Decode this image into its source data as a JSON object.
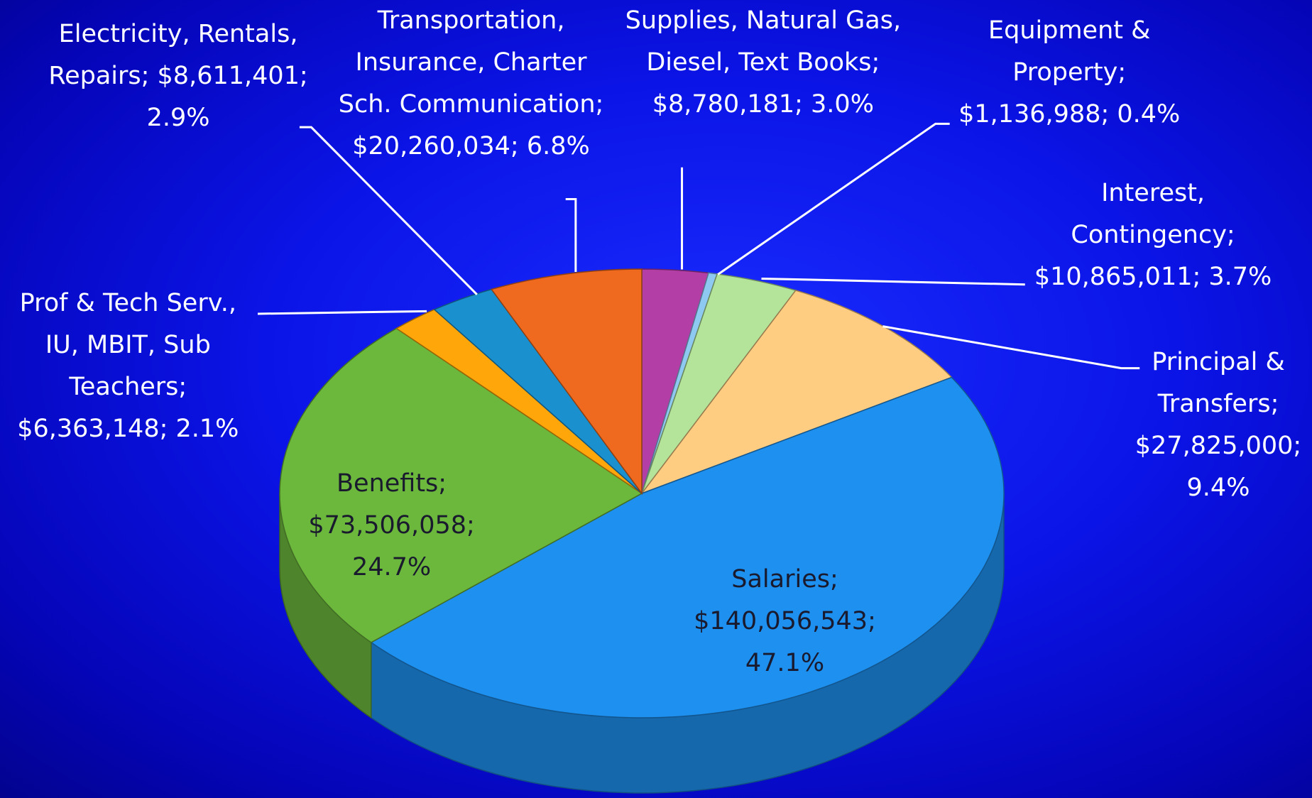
{
  "chart_data": {
    "type": "pie3d",
    "values": [
      8780181,
      1136988,
      10865011,
      27825000,
      140056543,
      73506058,
      6363148,
      8611401,
      20260034
    ],
    "value_labels": [
      "Supplies, Natural Gas, Diesel, Text Books; $8,780,181; 3.0%",
      "Equipment & Property; $1,136,988; 0.4%",
      "Interest, Contingency; $10,865,011; 3.7%",
      "Principal & Transfers; $27,825,000; 9.4%",
      "Salaries; $140,056,543; 47.1%",
      "Benefits; $73,506,058; 24.7%",
      "Prof & Tech Serv., IU, MBIT, Sub Teachers; $6,363,148; 2.1%",
      "Electricity, Rentals, Repairs; $8,611,401; 2.9%",
      "Transportation, Insurance, Charter Sch. Communication; $20,260,034; 6.8%"
    ],
    "colors": [
      "#b23ea6",
      "#8ec9f2",
      "#b3e49a",
      "#ffcd82",
      "#1e90ef",
      "#6cb83c",
      "#ffa60a",
      "#1b90cf",
      "#ef6a1e"
    ]
  }
}
